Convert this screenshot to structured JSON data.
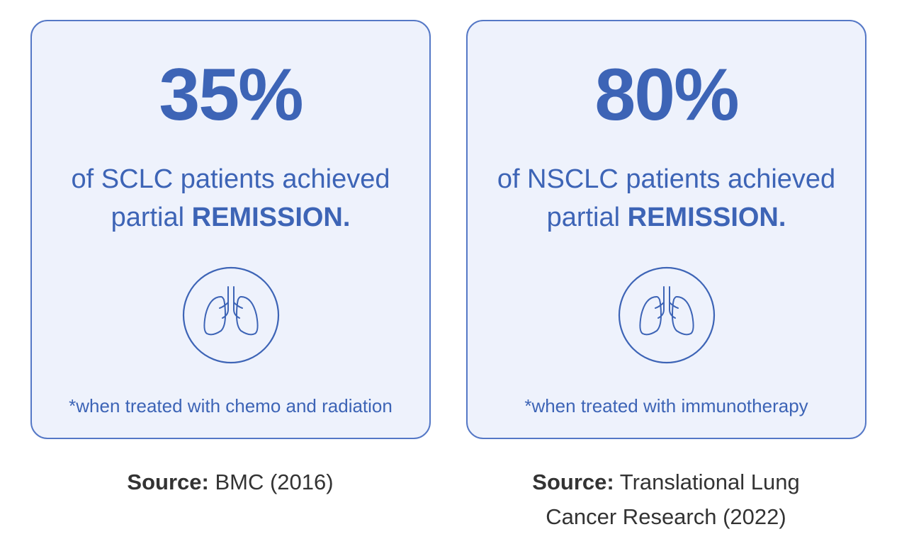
{
  "cards": [
    {
      "stat": "35%",
      "text": "of SCLC patients achieved partial",
      "emphasis": "REMISSION.",
      "note": "*when treated with chemo and radiation",
      "source_label": "Source:",
      "source": "BMC (2016)"
    },
    {
      "stat": "80%",
      "text": "of NSCLC patients achieved partial",
      "emphasis": "REMISSION.",
      "note": "*when treated with immunotherapy",
      "source_label": "Source:",
      "source": "Translational Lung Cancer Research (2022)"
    }
  ]
}
